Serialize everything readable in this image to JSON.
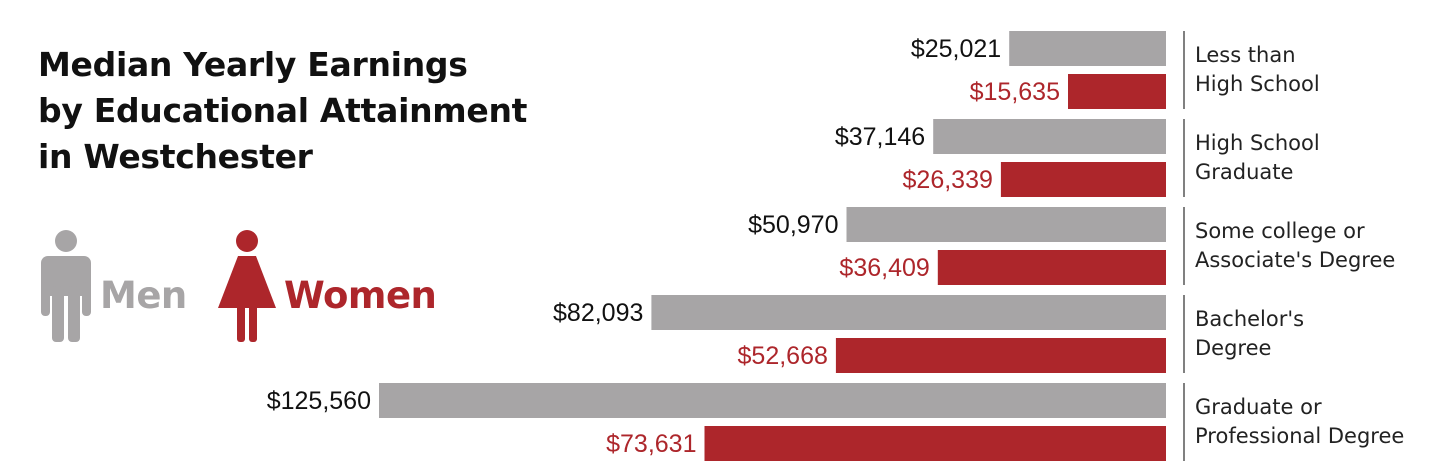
{
  "title_lines": [
    "Median Yearly Earnings",
    "by Educational Attainment",
    "in Westchester"
  ],
  "legend": {
    "men_label": "Men",
    "women_label": "Women",
    "men_icon": "man-figure-icon",
    "women_icon": "woman-figure-icon"
  },
  "colors": {
    "men": "#a7a5a6",
    "women": "#ad262b",
    "text": "#111111"
  },
  "chart_data": {
    "type": "bar",
    "orientation": "horizontal",
    "bar_direction": "right-to-left",
    "title": "Median Yearly Earnings by Educational Attainment in Westchester",
    "categories": [
      [
        "Less than",
        "High School"
      ],
      [
        "High School",
        "Graduate"
      ],
      [
        "Some college or",
        "Associate's Degree"
      ],
      [
        "Bachelor's",
        "Degree"
      ],
      [
        "Graduate or",
        "Professional Degree"
      ]
    ],
    "series": [
      {
        "name": "Men",
        "values": [
          25021,
          37146,
          50970,
          82093,
          125560
        ],
        "labels": [
          "$25,021",
          "$37,146",
          "$50,970",
          "$82,093",
          "$125,560"
        ]
      },
      {
        "name": "Women",
        "values": [
          15635,
          26339,
          36409,
          52668,
          73631
        ],
        "labels": [
          "$15,635",
          "$26,339",
          "$36,409",
          "$52,668",
          "$73,631"
        ]
      }
    ],
    "legend_position": "left",
    "grid": false
  }
}
